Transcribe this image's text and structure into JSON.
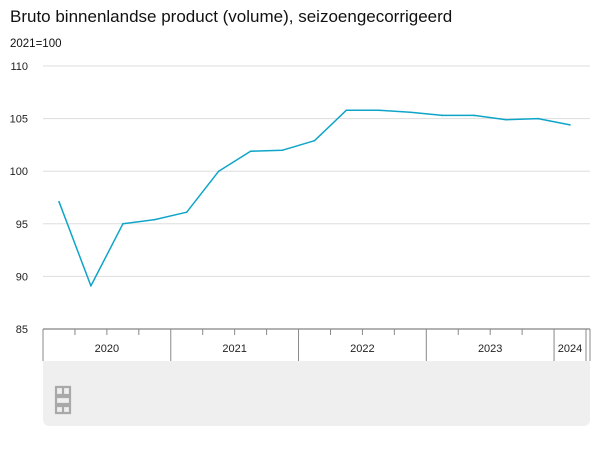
{
  "title": "Bruto binnenlandse product (volume), seizoengecorrigeerd",
  "subtitle": "2021=100",
  "logo_icon": "cbs-logo-icon",
  "colors": {
    "line": "#0ea5c9",
    "grid": "#dddddd",
    "axis": "#888888",
    "footer": "#efefef"
  },
  "chart_data": {
    "type": "line",
    "title": "Bruto binnenlandse product (volume), seizoengecorrigeerd",
    "ylabel": "2021=100",
    "ylim": [
      85,
      110
    ],
    "yticks": [
      85,
      90,
      95,
      100,
      105,
      110
    ],
    "grid": true,
    "x": [
      "2020 K1",
      "2020 K2",
      "2020 K3",
      "2020 K4",
      "2021 K1",
      "2021 K2",
      "2021 K3",
      "2021 K4",
      "2022 K1",
      "2022 K2",
      "2022 K3",
      "2022 K4",
      "2023 K1",
      "2023 K2",
      "2023 K3",
      "2023 K4",
      "2024 K1"
    ],
    "year_labels": [
      {
        "label": "2020",
        "quarters": 4
      },
      {
        "label": "2021",
        "quarters": 4
      },
      {
        "label": "2022",
        "quarters": 4
      },
      {
        "label": "2023",
        "quarters": 4
      },
      {
        "label": "2024",
        "quarters": 1
      }
    ],
    "series": [
      {
        "values": [
          97.1,
          89.1,
          95.0,
          95.4,
          96.1,
          100.0,
          101.9,
          102.0,
          102.9,
          105.8,
          105.8,
          105.6,
          105.3,
          105.3,
          104.9,
          105.0,
          104.4
        ]
      }
    ]
  }
}
